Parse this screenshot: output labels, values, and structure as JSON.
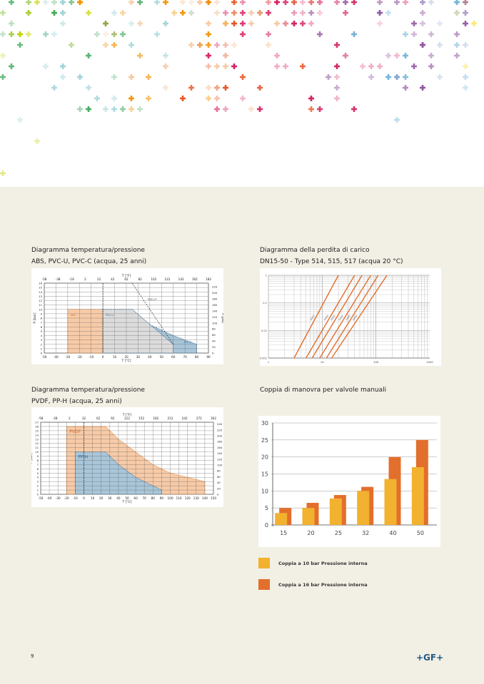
{
  "page_number": "9",
  "logo": "+GF+",
  "sections": [
    {
      "title1": "Diagramma temperatura/pressione",
      "title2": "ABS, PVC-U, PVC-C (acqua, 25 anni)"
    },
    {
      "title1": "Diagramma della perdita di carico",
      "title2": "DN15-50 - Type 514, 515, 517 (acqua 20 °C)"
    },
    {
      "title1": "Diagramma temperatura/pressione",
      "title2": "PVDF, PP-H (acqua, 25 anni)"
    },
    {
      "title1": "Coppia di manovra per valvole manuali",
      "title2": ""
    }
  ],
  "chart_data": [
    {
      "type": "area",
      "title": "Diagramma temperatura/pressione ABS, PVC-U, PVC-C",
      "xlabel": "T [°C]",
      "x2label": "T [°F]",
      "ylabel": "P [bar]",
      "y2label": "P [psi]",
      "xlim": [
        -50,
        90
      ],
      "ylim": [
        0,
        16
      ],
      "xticks": [
        -50,
        -40,
        -30,
        -20,
        -10,
        0,
        10,
        20,
        30,
        40,
        50,
        60,
        70,
        80,
        90
      ],
      "x2ticks": [
        "-58",
        "-38",
        "-18",
        "2",
        "22",
        "42",
        "62",
        "82",
        "102",
        "122",
        "142",
        "162",
        "182"
      ],
      "yticks": [
        0,
        1,
        2,
        3,
        4,
        5,
        6,
        7,
        8,
        9,
        10,
        11,
        12,
        13,
        14,
        15,
        16
      ],
      "y2ticks": [
        "0",
        "20",
        "40",
        "60",
        "80",
        "100",
        "120",
        "140",
        "160",
        "180",
        "200",
        "220"
      ],
      "series": [
        {
          "name": "ABS",
          "color": "#f7cba8",
          "x": [
            -30,
            0
          ],
          "y": [
            10,
            10
          ]
        },
        {
          "name": "PVC-C",
          "color": "#a9c6d9",
          "x": [
            0,
            25,
            40,
            60,
            80
          ],
          "y": [
            10,
            10,
            6.5,
            4,
            2
          ]
        },
        {
          "name": "PVC-U",
          "color": "#dcdcdc",
          "x": [
            0,
            25,
            60
          ],
          "y": [
            10,
            10,
            2
          ]
        },
        {
          "name": "PVC-C*",
          "color": "#333333",
          "x": [
            25,
            60
          ],
          "y": [
            16,
            2
          ],
          "style": "dashed"
        }
      ]
    },
    {
      "type": "line",
      "title": "Diagramma della perdita di carico DN15-50",
      "xscale": "log",
      "yscale": "log",
      "xlim": [
        1,
        1000
      ],
      "ylim": [
        0.001,
        1
      ],
      "xticks": [
        "1",
        "10",
        "100",
        "1000"
      ],
      "yticks": [
        "1",
        "0.1",
        "0.01",
        "0.001"
      ],
      "series": [
        {
          "name": "DN15",
          "x": [
            3,
            20
          ],
          "y": [
            0.001,
            1
          ]
        },
        {
          "name": "DN20",
          "x": [
            5,
            40
          ],
          "y": [
            0.001,
            1
          ]
        },
        {
          "name": "DN25",
          "x": [
            6.5,
            55
          ],
          "y": [
            0.001,
            1
          ]
        },
        {
          "name": "DN32",
          "x": [
            9,
            80
          ],
          "y": [
            0.001,
            1
          ]
        },
        {
          "name": "DN40",
          "x": [
            12,
            110
          ],
          "y": [
            0.001,
            1
          ]
        },
        {
          "name": "DN50",
          "x": [
            15,
            160
          ],
          "y": [
            0.001,
            1
          ]
        }
      ]
    },
    {
      "type": "area",
      "title": "Diagramma temperatura/pressione PVDF, PP-H",
      "xlabel": "T [°C]",
      "x2label": "T [°F]",
      "ylabel": "P [bar]",
      "y2label": "P [psi]",
      "xlim": [
        -50,
        150
      ],
      "ylim": [
        0,
        17
      ],
      "xticks": [
        -50,
        -40,
        -30,
        -20,
        -10,
        0,
        10,
        20,
        30,
        40,
        50,
        60,
        70,
        80,
        90,
        100,
        110,
        120,
        130,
        140,
        150
      ],
      "x2ticks": [
        "-58",
        "-28",
        "2",
        "32",
        "62",
        "92",
        "122",
        "152",
        "182",
        "212",
        "242",
        "272",
        "302"
      ],
      "yticks": [
        0,
        1,
        2,
        3,
        4,
        5,
        6,
        7,
        8,
        9,
        10,
        11,
        12,
        13,
        14,
        15,
        16,
        17
      ],
      "y2ticks": [
        "0",
        "20",
        "40",
        "60",
        "80",
        "100",
        "120",
        "140",
        "160",
        "180",
        "200",
        "220",
        "240"
      ],
      "series": [
        {
          "name": "PVDF",
          "color": "#f7cba8",
          "x": [
            -20,
            25,
            40,
            60,
            80,
            100,
            120,
            140
          ],
          "y": [
            16,
            16,
            13,
            10,
            7,
            5,
            4,
            3
          ]
        },
        {
          "name": "PP-H",
          "color": "#a9c6d9",
          "x": [
            -10,
            25,
            40,
            50,
            60,
            70,
            80,
            90
          ],
          "y": [
            10,
            10,
            7,
            5.5,
            4,
            3,
            2,
            1
          ]
        }
      ]
    },
    {
      "type": "bar",
      "title": "Coppia di manovra per valvole manuali",
      "categories": [
        "15",
        "20",
        "25",
        "32",
        "40",
        "50"
      ],
      "ylim": [
        0,
        30
      ],
      "yticks": [
        0,
        5,
        10,
        15,
        20,
        25,
        30
      ],
      "series": [
        {
          "name": "Coppia a 10 bar Pressione interna",
          "color": "#f2b12f",
          "values": [
            3.5,
            5,
            7.8,
            10,
            13.5,
            17
          ]
        },
        {
          "name": "Coppia a 16 bar Pressione interna",
          "color": "#e36f2c",
          "values": [
            5,
            6.5,
            8.8,
            11.2,
            20,
            25
          ]
        }
      ]
    }
  ]
}
